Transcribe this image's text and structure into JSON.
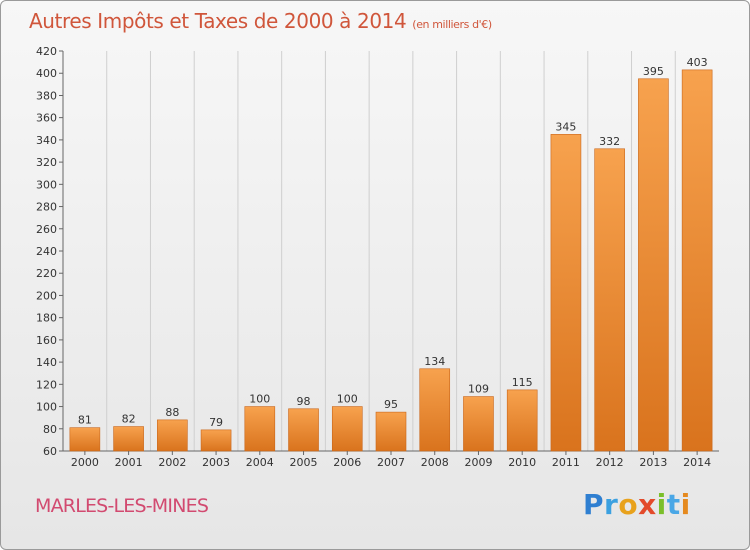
{
  "header": {
    "title": "Autres Impôts et Taxes de 2000 à 2014",
    "unit": "(en milliers d'€)"
  },
  "footer": {
    "place": "MARLES-LES-MINES"
  },
  "logo": {
    "letters": [
      {
        "ch": "P",
        "color": "#2f7fd1"
      },
      {
        "ch": "r",
        "color": "#3ba0e0"
      },
      {
        "ch": "o",
        "color": "#e8a21c"
      },
      {
        "ch": "x",
        "color": "#e34a2a"
      },
      {
        "ch": "i",
        "color": "#7bbf2a"
      },
      {
        "ch": "t",
        "color": "#4aa7e6"
      },
      {
        "ch": "i",
        "color": "#e58a1f"
      }
    ]
  },
  "colors": {
    "bar_top": "#f7a24e",
    "bar_bottom": "#d9731d",
    "bar_edge": "#c9661a",
    "axis": "#666666",
    "grid": "#cfcfcf"
  },
  "chart_data": {
    "type": "bar",
    "title": "Autres Impôts et Taxes de 2000 à 2014",
    "categories": [
      "2000",
      "2001",
      "2002",
      "2003",
      "2004",
      "2005",
      "2006",
      "2007",
      "2008",
      "2009",
      "2010",
      "2011",
      "2012",
      "2013",
      "2014"
    ],
    "values": [
      81,
      82,
      88,
      79,
      100,
      98,
      100,
      95,
      134,
      109,
      115,
      345,
      332,
      395,
      403
    ],
    "ylim": [
      60,
      420
    ],
    "yticks": [
      60,
      80,
      100,
      120,
      140,
      160,
      180,
      200,
      220,
      240,
      260,
      280,
      300,
      320,
      340,
      360,
      380,
      400,
      420
    ],
    "grid": "vertical",
    "data_labels": true
  }
}
